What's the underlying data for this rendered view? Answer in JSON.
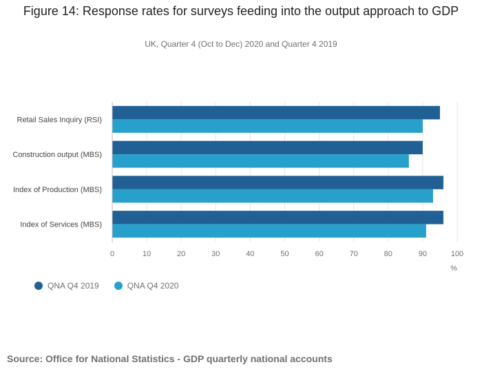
{
  "header": {
    "title": "Figure 14: Response rates for surveys feeding into the output approach to GDP",
    "subtitle": "UK, Quarter 4 (Oct to Dec) 2020 and Quarter 4 2019"
  },
  "source": "Source: Office for National Statistics - GDP quarterly national accounts",
  "chart_data": {
    "type": "bar",
    "orientation": "horizontal",
    "categories": [
      "Retail Sales Inquiry (RSI)",
      "Construction output (MBS)",
      "Index of Production (MBS)",
      "Index of Services (MBS)"
    ],
    "series": [
      {
        "name": "QNA Q4 2019",
        "color": "#206095",
        "values": [
          95,
          90,
          96,
          96
        ]
      },
      {
        "name": "QNA Q4 2020",
        "color": "#27A0CC",
        "values": [
          90,
          86,
          93,
          91
        ]
      }
    ],
    "xlim": [
      0,
      100
    ],
    "xticks": [
      0,
      10,
      20,
      30,
      40,
      50,
      60,
      70,
      80,
      90,
      100
    ],
    "xlabel": "%",
    "grid": true,
    "legend_position": "bottom-left"
  }
}
